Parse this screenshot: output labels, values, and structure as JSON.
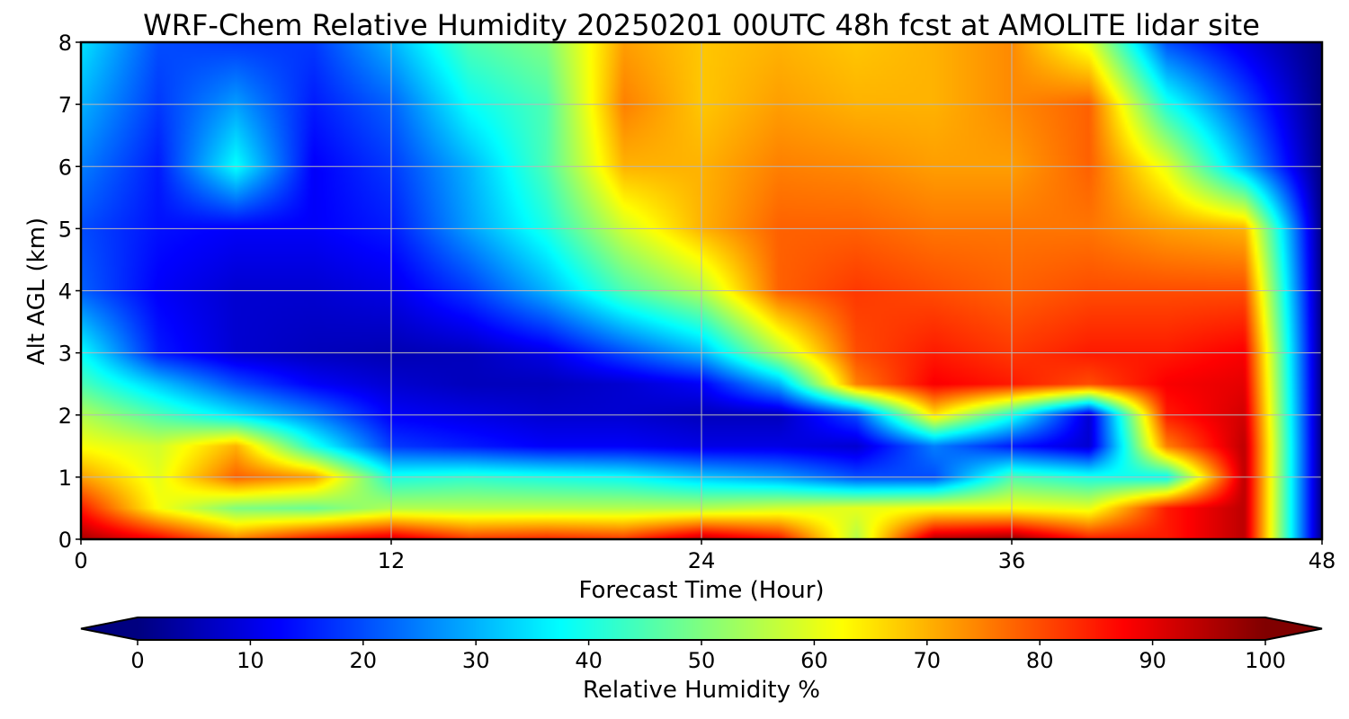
{
  "chart_data": {
    "type": "heatmap",
    "title": "WRF-Chem Relative Humidity 20250201 00UTC 48h fcst at AMOLITE lidar site",
    "xlabel": "Forecast Time (Hour)",
    "ylabel": "Alt AGL (km)",
    "xlim": [
      0,
      48
    ],
    "ylim": [
      0,
      8
    ],
    "x_ticks": [
      0,
      12,
      24,
      36,
      48
    ],
    "y_ticks": [
      0,
      1,
      2,
      3,
      4,
      5,
      6,
      7,
      8
    ],
    "grid": true,
    "colormap": "jet",
    "colorbar": {
      "label": "Relative Humidity %",
      "ticks": [
        0,
        10,
        20,
        30,
        40,
        50,
        60,
        70,
        80,
        90,
        100
      ],
      "range": [
        0,
        100
      ],
      "extend": "both",
      "orientation": "horizontal"
    },
    "x": [
      0,
      3,
      6,
      9,
      12,
      15,
      18,
      21,
      24,
      27,
      30,
      33,
      36,
      39,
      42,
      45,
      48
    ],
    "y": [
      0,
      0.5,
      1,
      1.5,
      2,
      2.5,
      3,
      4,
      5,
      6,
      7,
      8
    ],
    "z": [
      [
        96,
        88,
        75,
        86,
        92,
        82,
        84,
        82,
        94,
        86,
        55,
        95,
        98,
        85,
        85,
        94,
        0
      ],
      [
        85,
        62,
        50,
        48,
        55,
        55,
        55,
        55,
        55,
        58,
        60,
        62,
        62,
        60,
        85,
        94,
        0
      ],
      [
        72,
        60,
        78,
        72,
        40,
        42,
        40,
        38,
        32,
        28,
        20,
        20,
        45,
        40,
        38,
        94,
        0
      ],
      [
        62,
        58,
        70,
        40,
        18,
        15,
        12,
        12,
        10,
        10,
        8,
        25,
        15,
        8,
        75,
        94,
        0
      ],
      [
        55,
        45,
        35,
        25,
        12,
        10,
        8,
        8,
        6,
        6,
        20,
        65,
        40,
        8,
        85,
        92,
        0
      ],
      [
        45,
        32,
        20,
        12,
        8,
        6,
        6,
        8,
        12,
        30,
        75,
        88,
        85,
        80,
        88,
        90,
        0
      ],
      [
        38,
        15,
        8,
        6,
        5,
        6,
        10,
        20,
        30,
        55,
        80,
        85,
        82,
        85,
        85,
        88,
        0
      ],
      [
        22,
        12,
        8,
        8,
        10,
        18,
        30,
        45,
        55,
        78,
        82,
        80,
        78,
        80,
        80,
        80,
        0
      ],
      [
        20,
        14,
        12,
        12,
        15,
        28,
        40,
        58,
        70,
        78,
        78,
        76,
        76,
        76,
        72,
        70,
        0
      ],
      [
        25,
        15,
        38,
        12,
        18,
        30,
        45,
        70,
        70,
        75,
        74,
        72,
        72,
        78,
        60,
        30,
        0
      ],
      [
        30,
        18,
        28,
        15,
        22,
        38,
        45,
        75,
        68,
        72,
        70,
        70,
        74,
        78,
        40,
        20,
        0
      ],
      [
        35,
        20,
        18,
        18,
        30,
        45,
        50,
        72,
        68,
        70,
        68,
        70,
        74,
        60,
        20,
        10,
        0
      ]
    ]
  }
}
